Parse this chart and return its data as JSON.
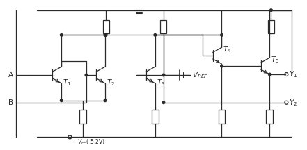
{
  "fig_width": 4.41,
  "fig_height": 2.16,
  "dpi": 100,
  "bg_color": "#ffffff",
  "line_color": "#2a2a2a",
  "lw": 0.9
}
